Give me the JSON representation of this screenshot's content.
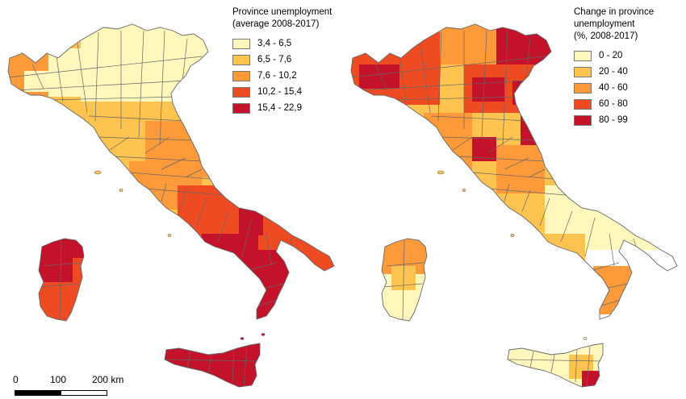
{
  "colors": {
    "c1": "#fff7bc",
    "c2": "#fec44f",
    "c3": "#fe9a3a",
    "c4": "#ef4b22",
    "c5": "#c3122a",
    "border": "#666666"
  },
  "left_map": {
    "legend_title_line1": "Province unemployment",
    "legend_title_line2": "(average 2008-2017)",
    "classes": [
      {
        "label": "3,4 - 6,5",
        "color": "#fff7bc"
      },
      {
        "label": "6,5 - 7,6",
        "color": "#fec44f"
      },
      {
        "label": "7,6 - 10,2",
        "color": "#fe9a3a"
      },
      {
        "label": "10,2 - 15,4",
        "color": "#ef4b22"
      },
      {
        "label": "15,4 - 22,9",
        "color": "#c3122a"
      }
    ]
  },
  "right_map": {
    "legend_title_line1": "Change in province",
    "legend_title_line2": "unemployment",
    "legend_title_line3": "(%, 2008-2017)",
    "classes": [
      {
        "label": "0 - 20",
        "color": "#fff7bc"
      },
      {
        "label": "20 - 40",
        "color": "#fec44f"
      },
      {
        "label": "40 - 60",
        "color": "#fe9a3a"
      },
      {
        "label": "60 - 80",
        "color": "#ef4b22"
      },
      {
        "label": "80 - 99",
        "color": "#c3122a"
      }
    ]
  },
  "scale_bar": {
    "label_0": "0",
    "label_100": "100",
    "label_200": "200 km"
  }
}
